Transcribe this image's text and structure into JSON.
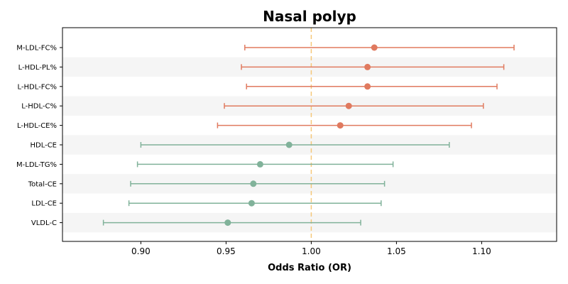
{
  "chart_data": {
    "type": "forest",
    "title": "Nasal polyp",
    "xlabel": "Odds Ratio (OR)",
    "ylabel": "",
    "xlim": [
      0.854,
      1.144
    ],
    "xticks": [
      0.9,
      0.95,
      1.0,
      1.05,
      1.1
    ],
    "xtick_labels": [
      "0.90",
      "0.95",
      "1.00",
      "1.05",
      "1.10"
    ],
    "reference_line": 1.0,
    "reference_line_color": "#f5c87a",
    "band_color": "#f5f5f5",
    "colors": {
      "positive": "#e07a5f",
      "negative": "#81b29a"
    },
    "grid": false,
    "rows": [
      {
        "label": "M-LDL-FC%",
        "or": 1.037,
        "lower": 0.961,
        "upper": 1.119,
        "group": "positive"
      },
      {
        "label": "L-HDL-PL%",
        "or": 1.033,
        "lower": 0.959,
        "upper": 1.113,
        "group": "positive"
      },
      {
        "label": "L-HDL-FC%",
        "or": 1.033,
        "lower": 0.962,
        "upper": 1.109,
        "group": "positive"
      },
      {
        "label": "L-HDL-C%",
        "or": 1.022,
        "lower": 0.949,
        "upper": 1.101,
        "group": "positive"
      },
      {
        "label": "L-HDL-CE%",
        "or": 1.017,
        "lower": 0.945,
        "upper": 1.094,
        "group": "positive"
      },
      {
        "label": "HDL-CE",
        "or": 0.987,
        "lower": 0.9,
        "upper": 1.081,
        "group": "negative"
      },
      {
        "label": "M-LDL-TG%",
        "or": 0.97,
        "lower": 0.898,
        "upper": 1.048,
        "group": "negative"
      },
      {
        "label": "Total-CE",
        "or": 0.966,
        "lower": 0.894,
        "upper": 1.043,
        "group": "negative"
      },
      {
        "label": "LDL-CE",
        "or": 0.965,
        "lower": 0.893,
        "upper": 1.041,
        "group": "negative"
      },
      {
        "label": "VLDL-C",
        "or": 0.951,
        "lower": 0.878,
        "upper": 1.029,
        "group": "negative"
      }
    ]
  }
}
